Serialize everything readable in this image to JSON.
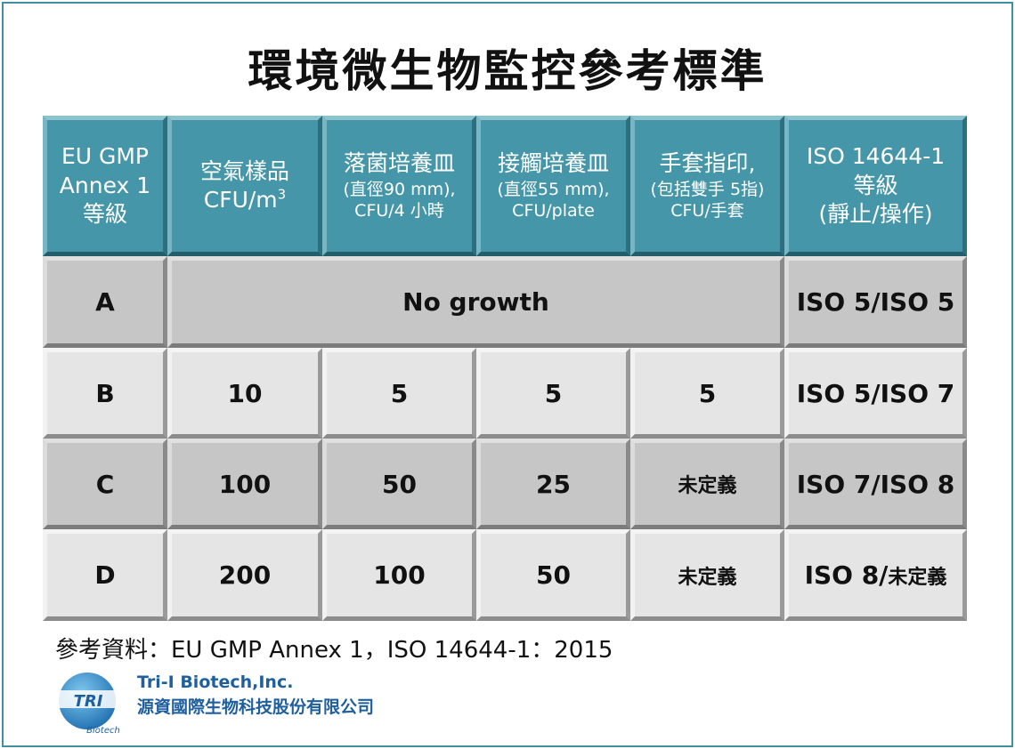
{
  "title": "環境微生物監控參考標準",
  "headers": {
    "grade": [
      "EU GMP",
      "Annex 1",
      "等級"
    ],
    "air": {
      "line1": "空氣樣品",
      "line2": "CFU/m",
      "sup": "3"
    },
    "settle": [
      "落菌培養皿",
      "(直徑90 mm),",
      "CFU/4 小時"
    ],
    "contact": [
      "接觸培養皿",
      "(直徑55 mm),",
      "CFU/plate"
    ],
    "glove": [
      "手套指印,",
      "(包括雙手 5指)",
      "CFU/手套"
    ],
    "iso": [
      "ISO 14644-1",
      "等級",
      "(靜止/操作)"
    ]
  },
  "rows": [
    {
      "grade": "A",
      "merged": "No growth",
      "iso": "ISO 5/ISO 5"
    },
    {
      "grade": "B",
      "air": "10",
      "settle": "5",
      "contact": "5",
      "glove": "5",
      "iso": "ISO 5/ISO 7"
    },
    {
      "grade": "C",
      "air": "100",
      "settle": "50",
      "contact": "25",
      "glove": "未定義",
      "iso": "ISO 7/ISO 8"
    },
    {
      "grade": "D",
      "air": "200",
      "settle": "100",
      "contact": "50",
      "glove": "未定義",
      "iso_main": "ISO 8/",
      "iso_suffix": "未定義"
    }
  ],
  "reference": "參考資料：EU GMP Annex 1，ISO 14644-1：2015",
  "company": {
    "name_en": "Tri-I Biotech,Inc.",
    "name_zh": "源資國際生物科技股份有限公司",
    "logo_text": "TRI",
    "logo_caption": "Biotech"
  },
  "colors": {
    "header": "#4596a8",
    "light_cell": "#e5e5e5",
    "dark_cell": "#c6c6c6",
    "company": "#1f5f9e"
  }
}
